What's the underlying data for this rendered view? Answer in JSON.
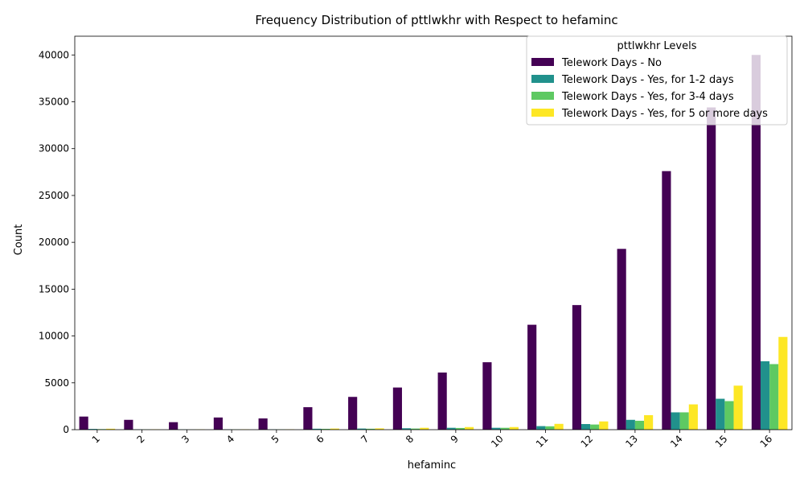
{
  "chart_data": {
    "type": "bar",
    "title": "Frequency Distribution of pttlwkhr with Respect to hefaminc",
    "xlabel": "hefaminc",
    "ylabel": "Count",
    "categories": [
      "1",
      "2",
      "3",
      "4",
      "5",
      "6",
      "7",
      "8",
      "9",
      "10",
      "11",
      "12",
      "13",
      "14",
      "15",
      "16"
    ],
    "ylim": [
      0,
      42000
    ],
    "yticks": [
      0,
      5000,
      10000,
      15000,
      20000,
      25000,
      30000,
      35000,
      40000
    ],
    "legend": {
      "title": "pttlwkhr Levels",
      "placement": "top-right"
    },
    "grid": false,
    "series": [
      {
        "name": "Telework Days - No",
        "color": "#440154",
        "values": [
          1400,
          1050,
          800,
          1300,
          1200,
          2400,
          3500,
          4500,
          6100,
          7200,
          11200,
          13300,
          19300,
          27600,
          34400,
          40000
        ]
      },
      {
        "name": "Telework Days - Yes, for 1-2 days",
        "color": "#21918c",
        "values": [
          80,
          40,
          30,
          40,
          40,
          100,
          120,
          150,
          200,
          200,
          380,
          600,
          1050,
          1850,
          3300,
          7300
        ]
      },
      {
        "name": "Telework Days - Yes, for 3-4 days",
        "color": "#5ec962",
        "values": [
          60,
          30,
          20,
          30,
          30,
          90,
          100,
          120,
          180,
          200,
          360,
          550,
          950,
          1850,
          3050,
          7000
        ]
      },
      {
        "name": "Telework Days - Yes, for 5 or more days",
        "color": "#fde725",
        "values": [
          100,
          40,
          30,
          40,
          40,
          120,
          140,
          200,
          280,
          280,
          620,
          880,
          1550,
          2700,
          4700,
          9900
        ]
      }
    ]
  }
}
